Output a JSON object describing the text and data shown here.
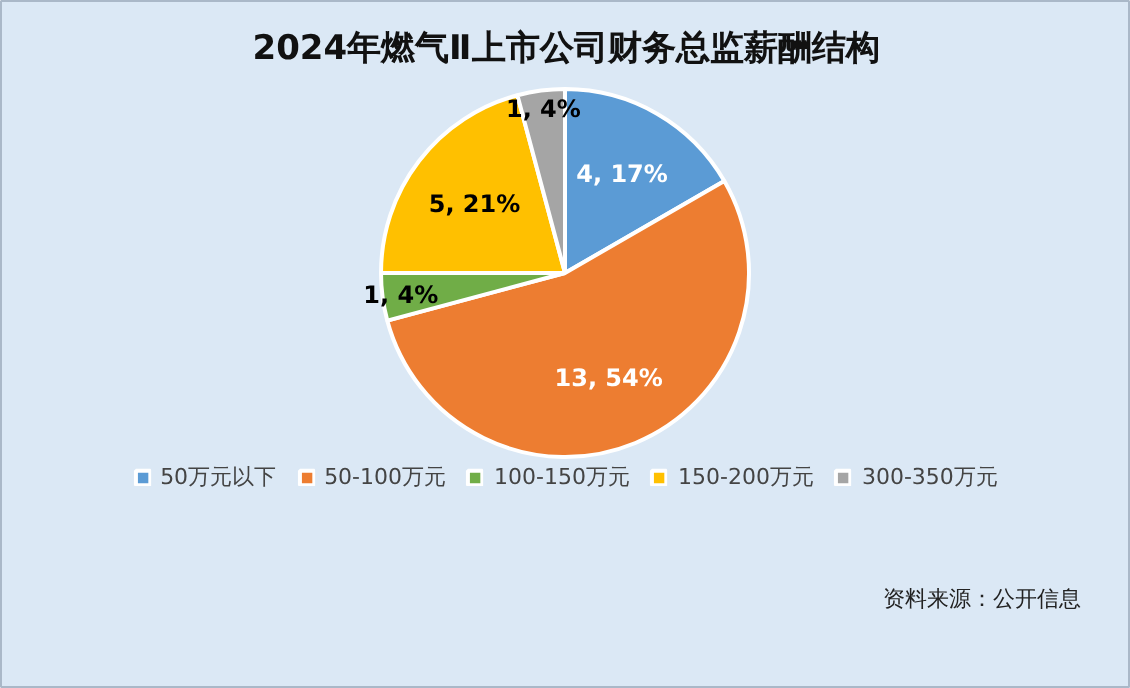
{
  "chart_data": {
    "type": "pie",
    "title": "2024年燃气Ⅱ上市公司财务总监薪酬结构",
    "categories": [
      "50万元以下",
      "50-100万元",
      "100-150万元",
      "150-200万元",
      "300-350万元"
    ],
    "values": [
      4,
      13,
      1,
      5,
      1
    ],
    "colors": [
      "#5b9bd5",
      "#ed7d31",
      "#70ad47",
      "#ffc000",
      "#a5a5a5"
    ],
    "value_labels": [
      "4, 17%",
      "13, 54%",
      "1, 4%",
      "5, 21%",
      "1, 4%"
    ],
    "legend": "bottom",
    "annotations": [
      "资料来源：公开信息"
    ]
  }
}
